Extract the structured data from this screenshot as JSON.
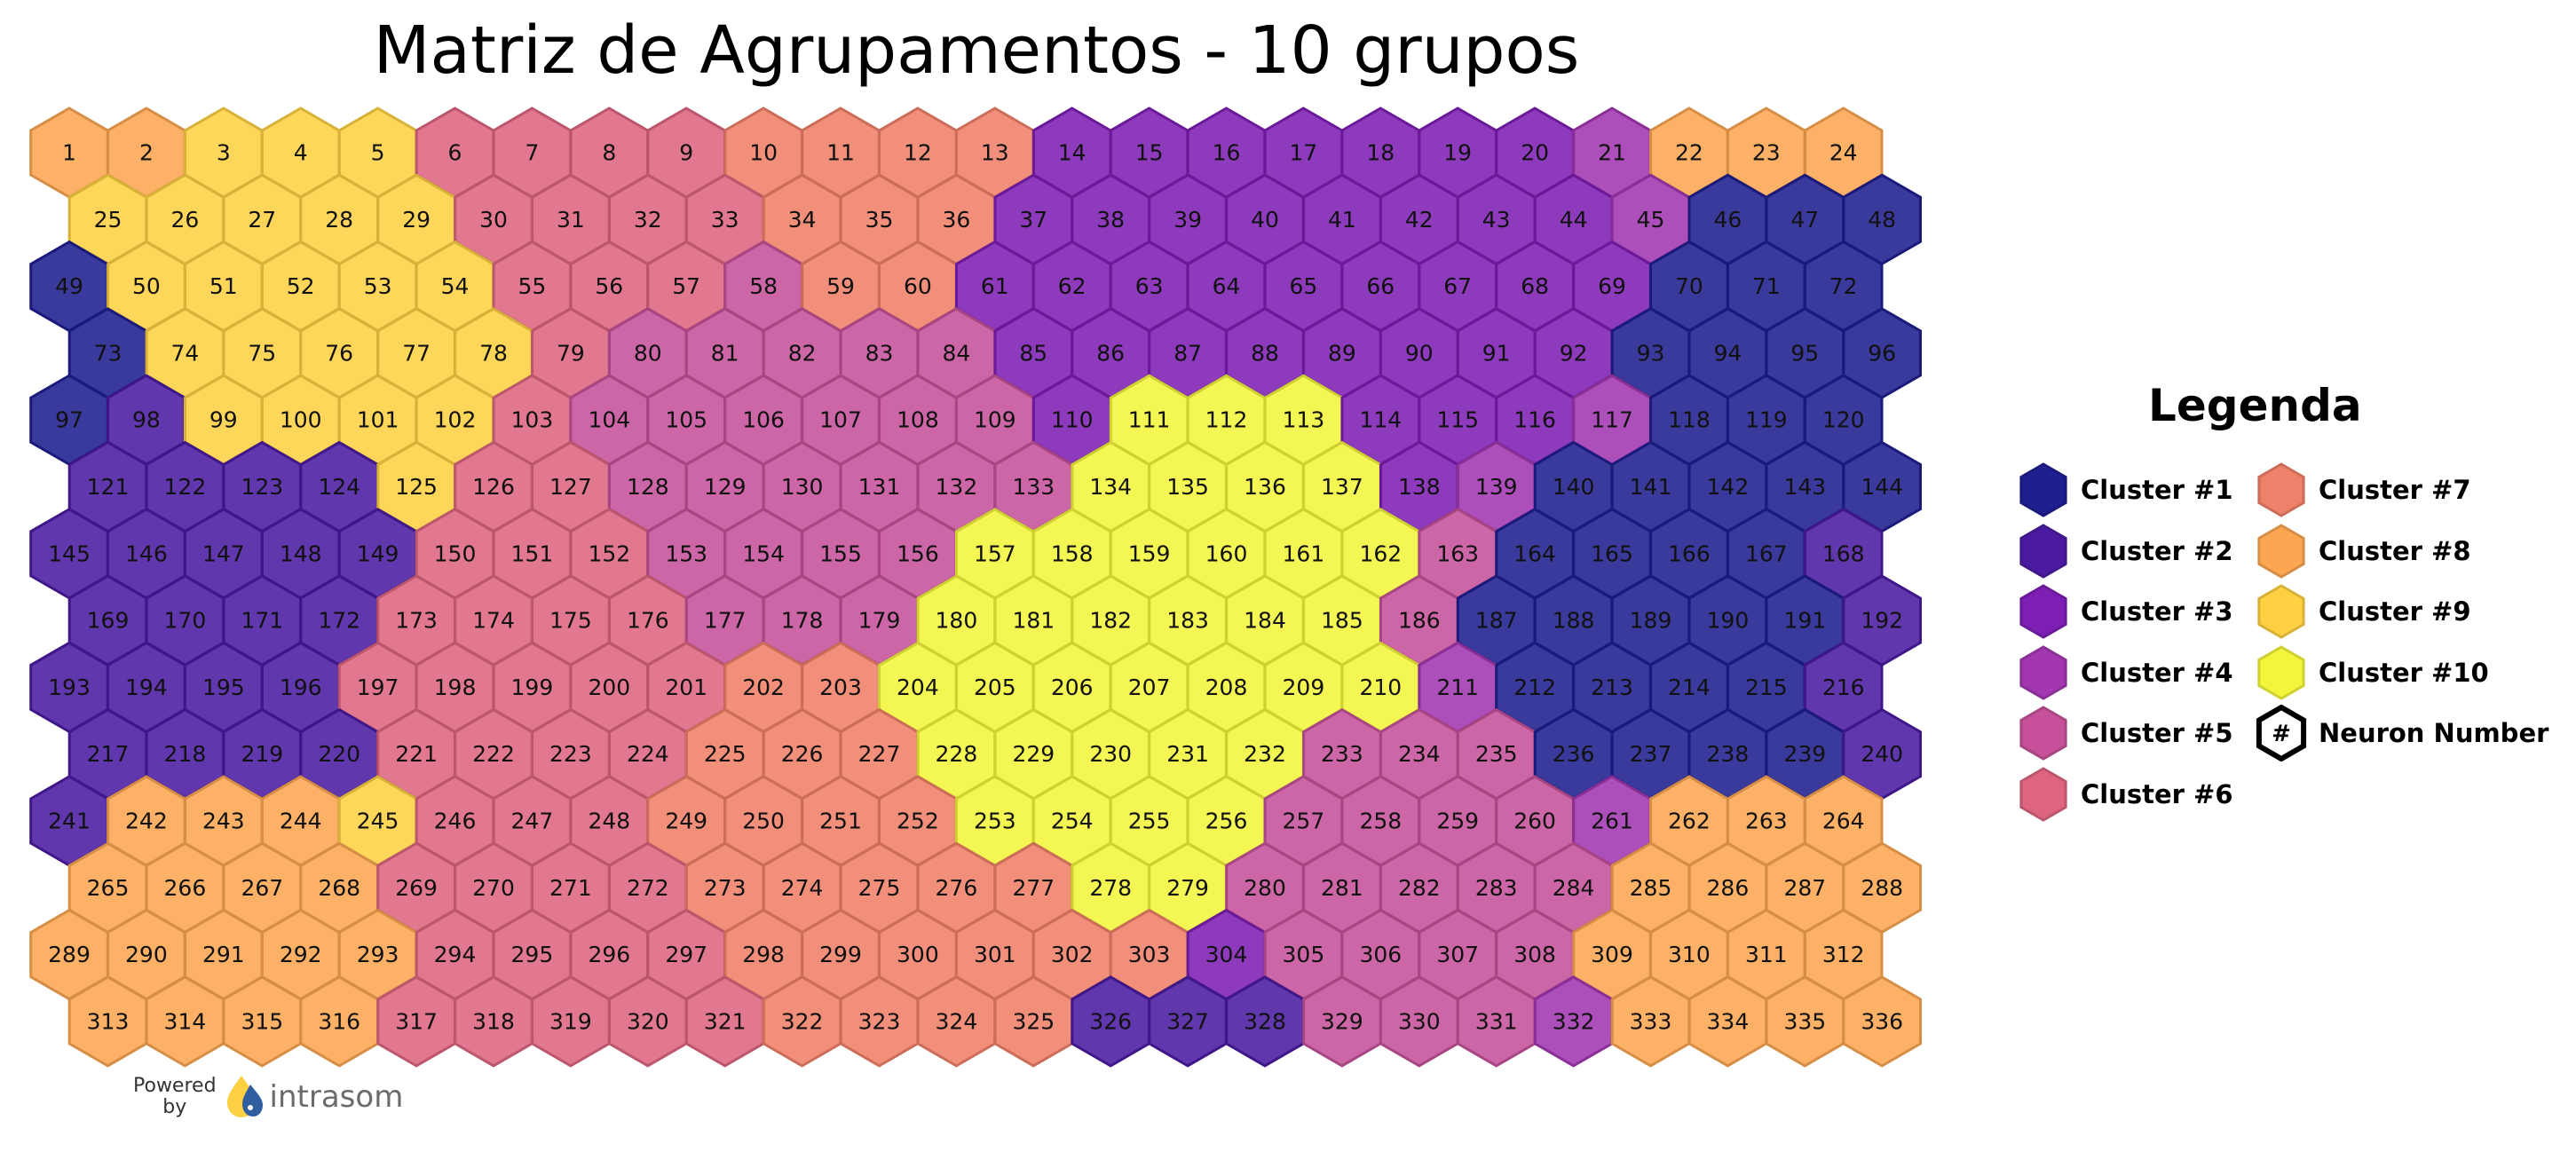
{
  "title": "Matriz de Agrupamentos - 10 grupos",
  "grid": {
    "cols": 24,
    "rows": 14,
    "first_neuron": 1,
    "last_neuron": 336,
    "assignments": [
      "8,8,9,9,9,6,6,6,6,7,7,7,7,3,3,3,3,3,3,3,4,8,8,8",
      "9,9,9,9,9,6,6,6,6,7,7,7,3,3,3,3,3,3,3,3,4,1,1,1",
      "1,9,9,9,9,9,6,6,6,5,7,7,3,3,3,3,3,3,3,3,3,1,1,1",
      "1,9,9,9,9,9,6,5,5,5,5,5,3,3,3,3,3,3,3,3,1,1,1,1",
      "1,2,9,9,9,9,6,5,5,5,5,5,5,3,10,10,10,3,3,3,4,1,1,1",
      "2,2,2,2,9,6,6,5,5,5,5,5,5,10,10,10,10,3,4,1,1,1,1,1",
      "2,2,2,2,2,6,6,6,5,5,5,5,10,10,10,10,10,10,5,1,1,1,1,2",
      "2,2,2,2,6,6,6,6,5,5,5,10,10,10,10,10,10,5,1,1,1,1,1,2",
      "2,2,2,2,6,6,6,6,6,7,7,10,10,10,10,10,10,10,4,1,1,1,1,2",
      "2,2,2,2,6,6,6,6,7,7,7,10,10,10,10,10,5,5,5,1,1,1,1,2",
      "2,8,8,8,9,6,6,6,7,7,7,7,10,10,10,10,5,5,5,5,4,8,8,8",
      "8,8,8,8,6,6,6,6,7,7,7,7,7,10,10,5,5,5,5,5,8,8,8,8",
      "8,8,8,8,8,6,6,6,6,7,7,7,7,7,7,3,5,5,5,5,8,8,8,8",
      "8,8,8,8,6,6,6,6,6,7,7,7,7,2,2,2,5,5,5,4,8,8,8,8"
    ]
  },
  "palette": {
    "1": "#1f1f8f",
    "2": "#4a1ba0",
    "3": "#7d1fb3",
    "4": "#a237b0",
    "5": "#c6519a",
    "6": "#dd6580",
    "7": "#ef8069",
    "8": "#fca651",
    "9": "#fed042",
    "10": "#f3f53b"
  },
  "legend": {
    "title": "Legenda",
    "items": [
      {
        "label": "Cluster #1",
        "color": "#1f1f8f"
      },
      {
        "label": "Cluster #2",
        "color": "#4a1ba0"
      },
      {
        "label": "Cluster #3",
        "color": "#7d1fb3"
      },
      {
        "label": "Cluster #4",
        "color": "#a237b0"
      },
      {
        "label": "Cluster #5",
        "color": "#c6519a"
      },
      {
        "label": "Cluster #6",
        "color": "#dd6580"
      },
      {
        "label": "Cluster #7",
        "color": "#ef8069"
      },
      {
        "label": "Cluster #8",
        "color": "#fca651"
      },
      {
        "label": "Cluster #9",
        "color": "#fed042"
      },
      {
        "label": "Cluster #10",
        "color": "#f3f53b"
      }
    ],
    "neuron_marker": {
      "symbol": "#",
      "label": "Neuron Number"
    }
  },
  "logo": {
    "powered_line1": "Powered",
    "powered_line2": "by",
    "brand": "intrasom"
  }
}
